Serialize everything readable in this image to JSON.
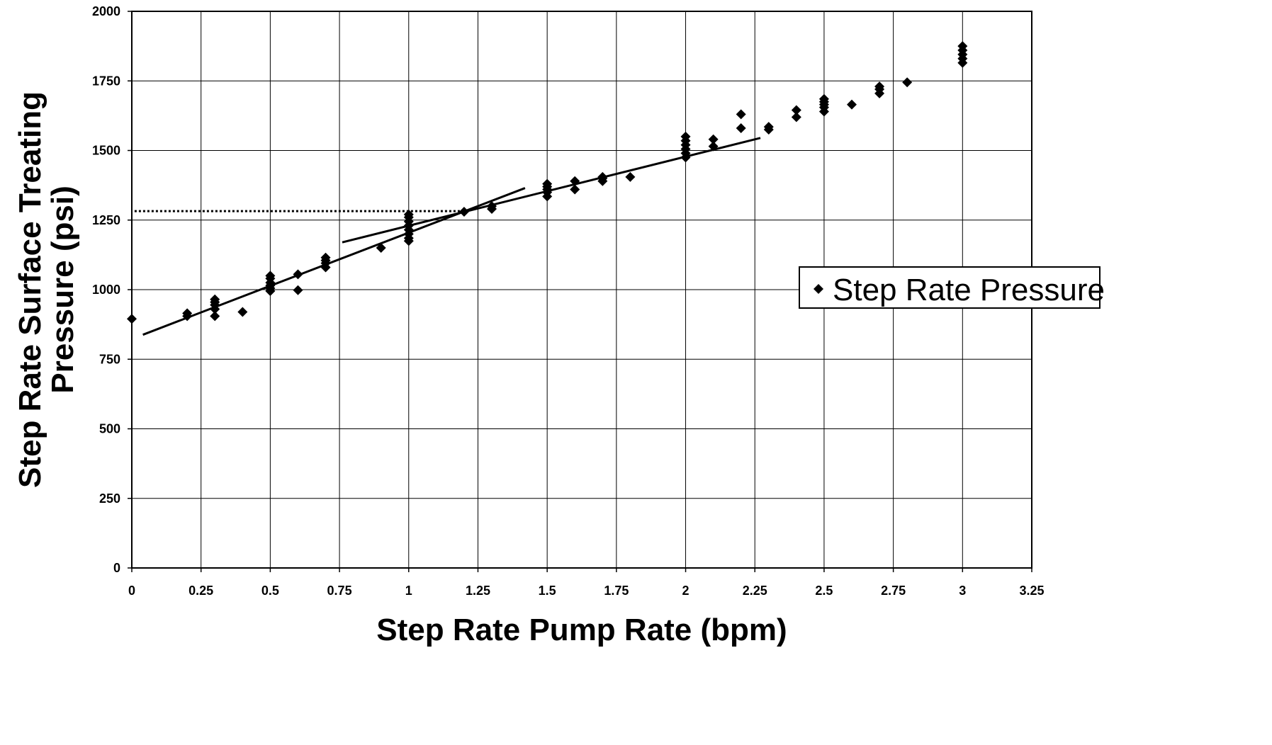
{
  "chart_data": {
    "type": "scatter",
    "xlabel": "Step Rate Pump Rate (bpm)",
    "ylabel_lines": [
      "Step Rate Surface Treating",
      "Pressure (psi)"
    ],
    "xlim": [
      0,
      3.25
    ],
    "ylim": [
      0,
      2000
    ],
    "x_ticks": [
      0,
      0.25,
      0.5,
      0.75,
      1,
      1.25,
      1.5,
      1.75,
      2,
      2.25,
      2.5,
      2.75,
      3,
      3.25
    ],
    "x_tick_labels": [
      "0",
      "0.25",
      "0.5",
      "0.75",
      "1",
      "1.25",
      "1.5",
      "1.75",
      "2",
      "2.25",
      "2.5",
      "2.75",
      "3",
      "3.25"
    ],
    "y_ticks": [
      0,
      250,
      500,
      750,
      1000,
      1250,
      1500,
      1750,
      2000
    ],
    "y_tick_labels": [
      "0",
      "250",
      "500",
      "750",
      "1000",
      "1250",
      "1500",
      "1750",
      "2000"
    ],
    "grid": true,
    "legend_position": "right",
    "series": [
      {
        "name": "Step Rate Pressure",
        "marker": "diamond",
        "color": "#000000",
        "points": [
          [
            0,
            895
          ],
          [
            0.2,
            905
          ],
          [
            0.2,
            915
          ],
          [
            0.3,
            905
          ],
          [
            0.3,
            930
          ],
          [
            0.3,
            945
          ],
          [
            0.3,
            955
          ],
          [
            0.3,
            965
          ],
          [
            0.4,
            920
          ],
          [
            0.5,
            995
          ],
          [
            0.5,
            1005
          ],
          [
            0.5,
            1015
          ],
          [
            0.5,
            1025
          ],
          [
            0.5,
            1040
          ],
          [
            0.5,
            1050
          ],
          [
            0.6,
            998
          ],
          [
            0.6,
            1055
          ],
          [
            0.7,
            1080
          ],
          [
            0.7,
            1095
          ],
          [
            0.7,
            1105
          ],
          [
            0.7,
            1115
          ],
          [
            0.9,
            1150
          ],
          [
            1,
            1175
          ],
          [
            1,
            1185
          ],
          [
            1,
            1200
          ],
          [
            1,
            1215
          ],
          [
            1,
            1230
          ],
          [
            1,
            1245
          ],
          [
            1,
            1260
          ],
          [
            1,
            1270
          ],
          [
            1.2,
            1280
          ],
          [
            1.3,
            1290
          ],
          [
            1.3,
            1300
          ],
          [
            1.5,
            1335
          ],
          [
            1.5,
            1350
          ],
          [
            1.5,
            1360
          ],
          [
            1.5,
            1370
          ],
          [
            1.5,
            1380
          ],
          [
            1.6,
            1360
          ],
          [
            1.6,
            1390
          ],
          [
            1.7,
            1390
          ],
          [
            1.7,
            1400
          ],
          [
            1.7,
            1405
          ],
          [
            1.8,
            1405
          ],
          [
            2,
            1475
          ],
          [
            2,
            1490
          ],
          [
            2,
            1505
          ],
          [
            2,
            1520
          ],
          [
            2,
            1535
          ],
          [
            2,
            1550
          ],
          [
            2.1,
            1515
          ],
          [
            2.1,
            1540
          ],
          [
            2.2,
            1580
          ],
          [
            2.2,
            1630
          ],
          [
            2.3,
            1575
          ],
          [
            2.3,
            1585
          ],
          [
            2.4,
            1620
          ],
          [
            2.4,
            1645
          ],
          [
            2.5,
            1640
          ],
          [
            2.5,
            1655
          ],
          [
            2.5,
            1665
          ],
          [
            2.5,
            1675
          ],
          [
            2.5,
            1685
          ],
          [
            2.6,
            1665
          ],
          [
            2.7,
            1705
          ],
          [
            2.7,
            1720
          ],
          [
            2.7,
            1730
          ],
          [
            2.8,
            1745
          ],
          [
            3,
            1815
          ],
          [
            3,
            1830
          ],
          [
            3,
            1845
          ],
          [
            3,
            1860
          ],
          [
            3,
            1875
          ]
        ]
      }
    ],
    "trend_lines": [
      {
        "style": "solid",
        "x": [
          0.04,
          1.42
        ],
        "y": [
          838,
          1365
        ]
      },
      {
        "style": "solid",
        "x": [
          0.76,
          2.27
        ],
        "y": [
          1170,
          1545
        ]
      },
      {
        "style": "dotted",
        "x": [
          0.01,
          1.22
        ],
        "y": [
          1282,
          1282
        ]
      }
    ]
  }
}
